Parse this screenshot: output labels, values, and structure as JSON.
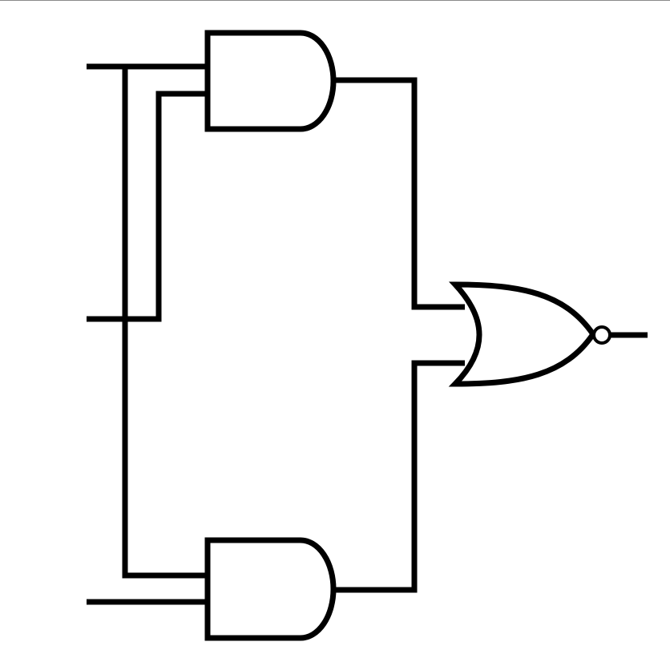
{
  "diagram": {
    "type": "logic-circuit",
    "components": [
      {
        "id": "and-gate-top",
        "kind": "AND"
      },
      {
        "id": "and-gate-bottom",
        "kind": "AND"
      },
      {
        "id": "nor-gate",
        "kind": "NOR"
      }
    ],
    "inputs": 3,
    "outputs": 1,
    "colors": {
      "background": "#ffffff",
      "stroke": "#000000",
      "border": "#8a8a8a"
    }
  }
}
